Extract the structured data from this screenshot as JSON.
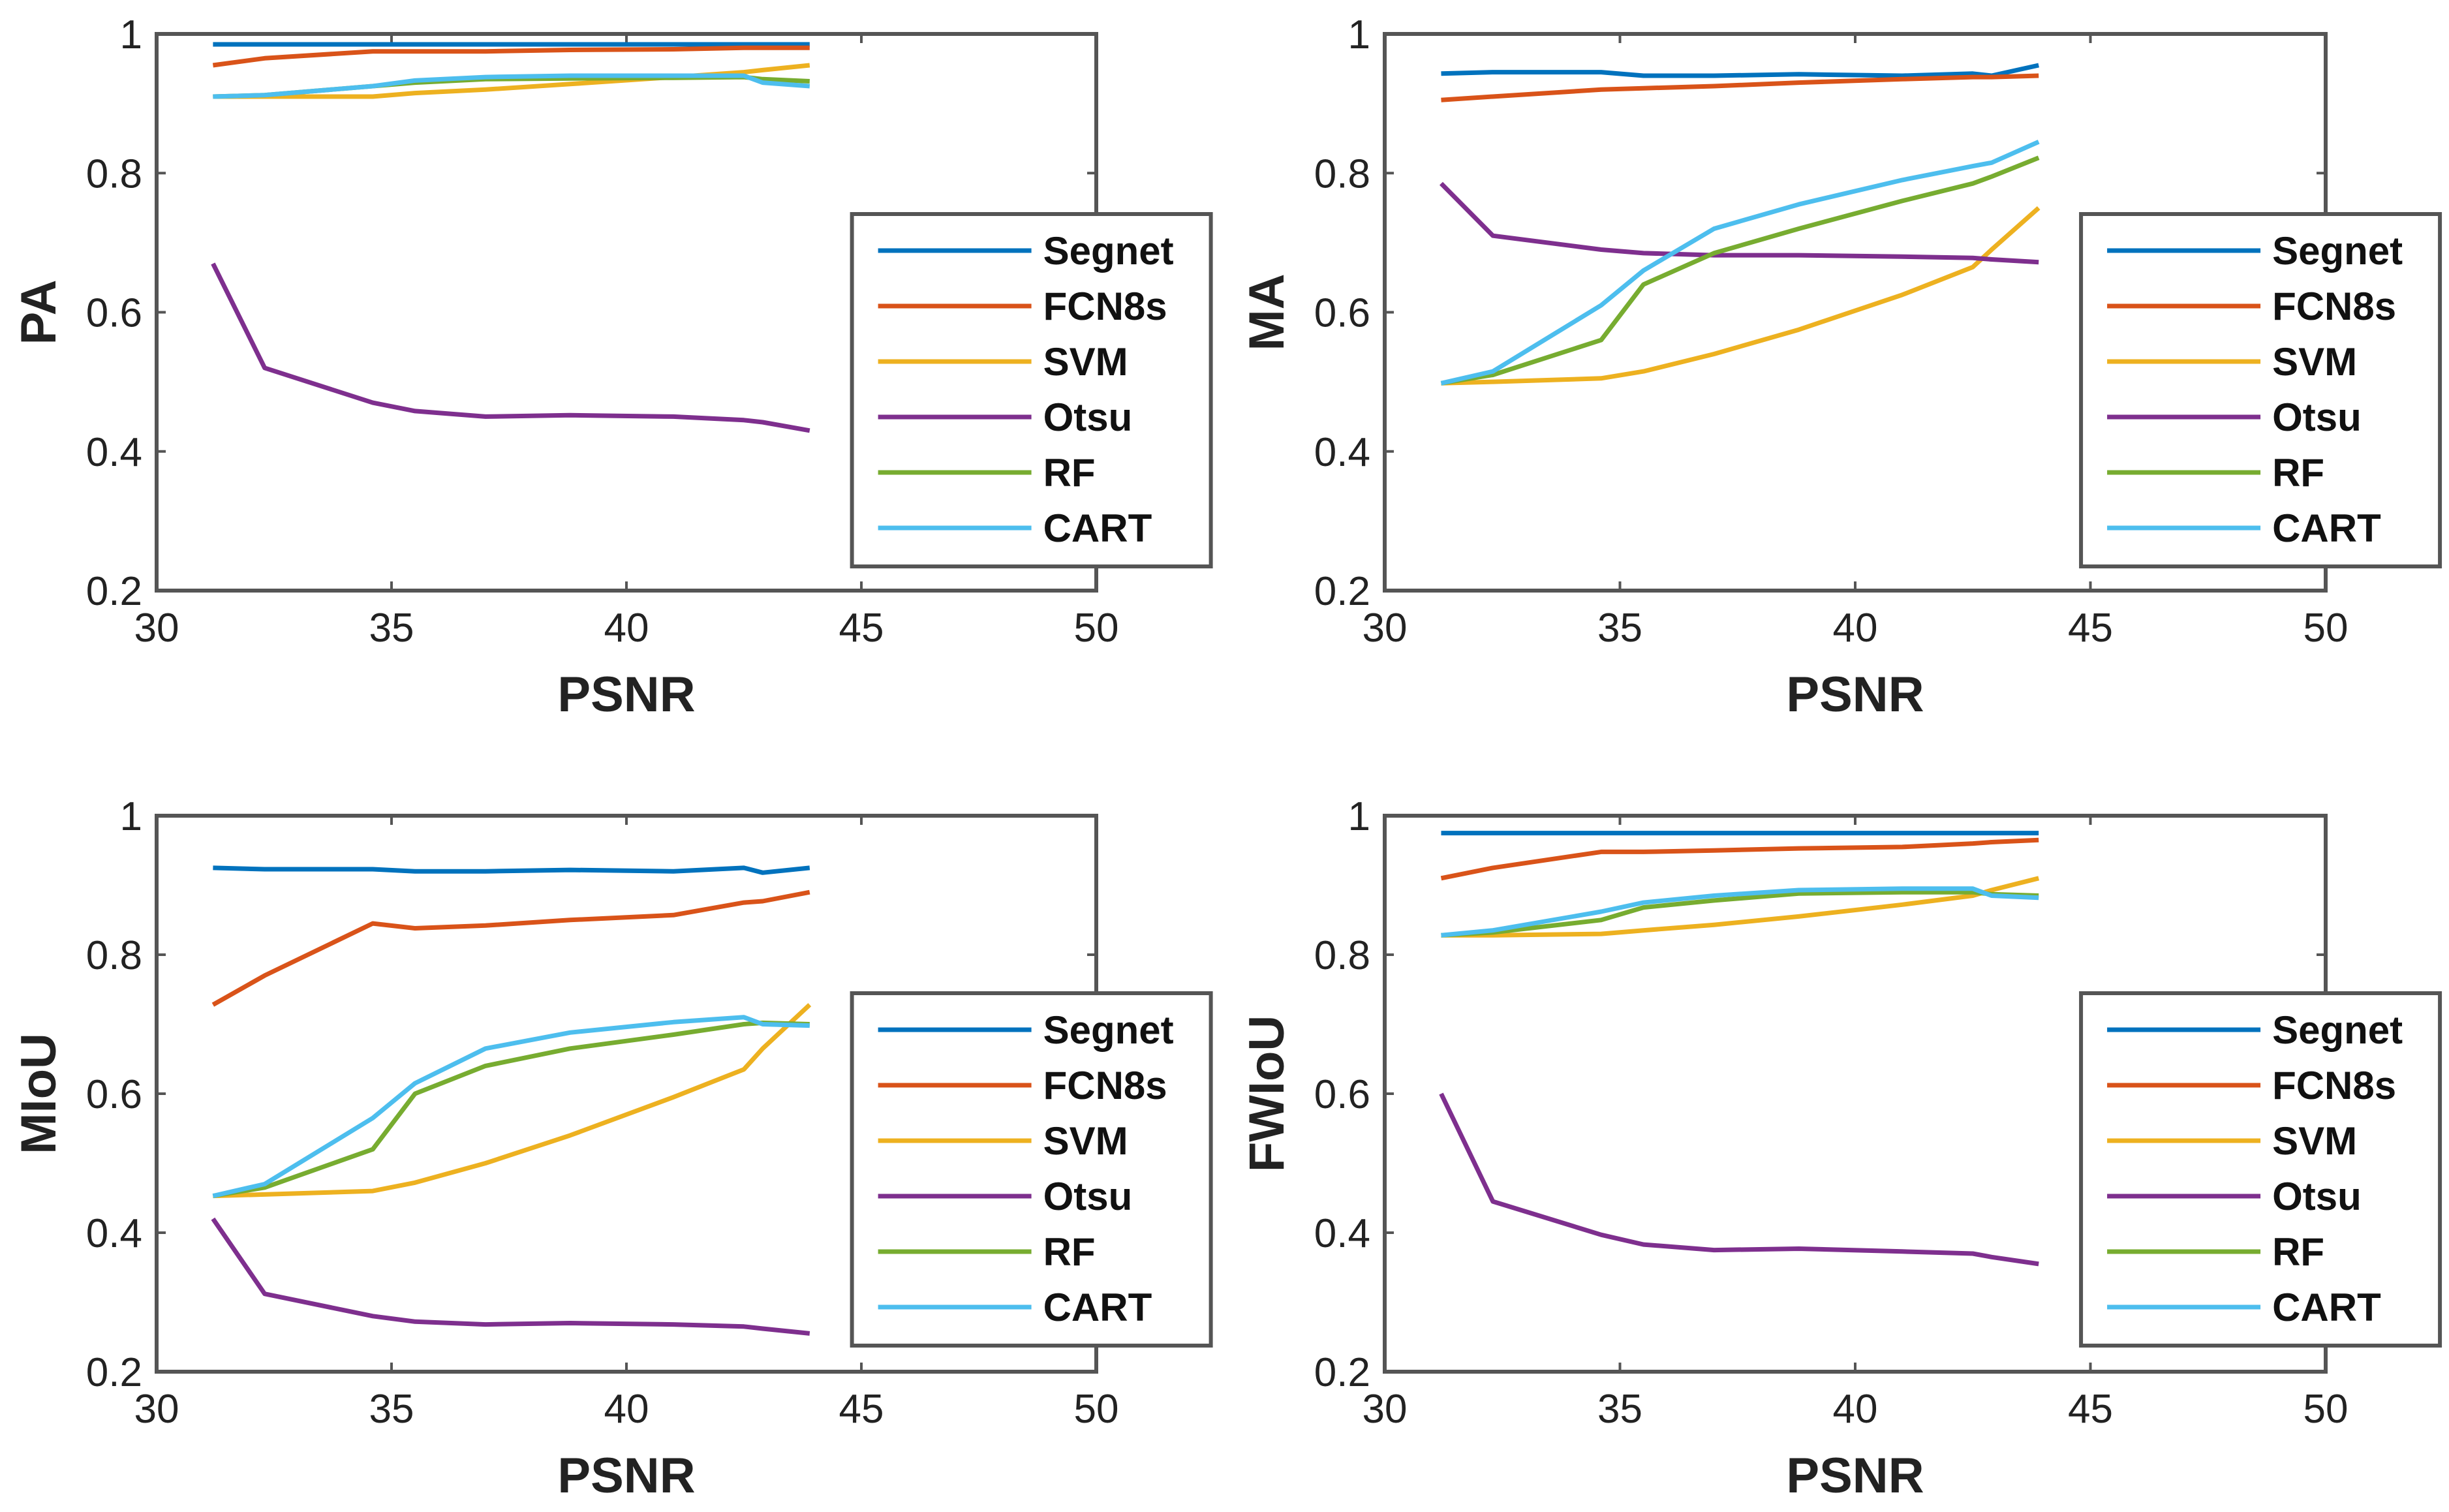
{
  "figure": {
    "colors": {
      "Segnet": "#0072BD",
      "FCN8s": "#D95319",
      "SVM": "#EDB120",
      "Otsu": "#7E2F8E",
      "RF": "#77AC30",
      "CART": "#4DBEEE",
      "axis": "#555555"
    }
  },
  "chart_data": [
    {
      "type": "line",
      "title": "",
      "xlabel": "PSNR",
      "ylabel": "PA",
      "xlim": [
        30,
        50
      ],
      "ylim": [
        0.2,
        1
      ],
      "xticks": [
        "30",
        "35",
        "40",
        "45",
        "50"
      ],
      "yticks": [
        "0.2",
        "0.4",
        "0.6",
        "0.8",
        "1"
      ],
      "legend_position": "middle-right",
      "x": [
        31.2,
        32.3,
        34.6,
        35.5,
        37,
        38.8,
        41,
        42.5,
        42.9,
        43.9
      ],
      "series": [
        {
          "name": "Segnet",
          "values": [
            0.985,
            0.985,
            0.985,
            0.985,
            0.985,
            0.985,
            0.985,
            0.985,
            0.985,
            0.985
          ]
        },
        {
          "name": "FCN8s",
          "values": [
            0.955,
            0.965,
            0.975,
            0.975,
            0.975,
            0.977,
            0.978,
            0.98,
            0.98,
            0.98
          ]
        },
        {
          "name": "SVM",
          "values": [
            0.91,
            0.91,
            0.91,
            0.915,
            0.92,
            0.928,
            0.938,
            0.945,
            0.948,
            0.955
          ]
        },
        {
          "name": "Otsu",
          "values": [
            0.67,
            0.52,
            0.47,
            0.458,
            0.45,
            0.452,
            0.45,
            0.445,
            0.442,
            0.43
          ]
        },
        {
          "name": "RF",
          "values": [
            0.91,
            0.912,
            0.925,
            0.93,
            0.935,
            0.936,
            0.937,
            0.938,
            0.935,
            0.932
          ]
        },
        {
          "name": "CART",
          "values": [
            0.91,
            0.912,
            0.925,
            0.933,
            0.938,
            0.94,
            0.94,
            0.94,
            0.93,
            0.925
          ]
        }
      ]
    },
    {
      "type": "line",
      "title": "",
      "xlabel": "PSNR",
      "ylabel": "MA",
      "xlim": [
        30,
        50
      ],
      "ylim": [
        0.2,
        1
      ],
      "xticks": [
        "30",
        "35",
        "40",
        "45",
        "50"
      ],
      "yticks": [
        "0.2",
        "0.4",
        "0.6",
        "0.8",
        "1"
      ],
      "legend_position": "middle-right",
      "x": [
        31.2,
        32.3,
        34.6,
        35.5,
        37,
        38.8,
        41,
        42.5,
        42.9,
        43.9
      ],
      "series": [
        {
          "name": "Segnet",
          "values": [
            0.943,
            0.945,
            0.945,
            0.94,
            0.94,
            0.942,
            0.94,
            0.943,
            0.94,
            0.955
          ]
        },
        {
          "name": "FCN8s",
          "values": [
            0.905,
            0.91,
            0.92,
            0.922,
            0.925,
            0.93,
            0.935,
            0.938,
            0.938,
            0.94
          ]
        },
        {
          "name": "SVM",
          "values": [
            0.498,
            0.5,
            0.505,
            0.515,
            0.54,
            0.575,
            0.625,
            0.665,
            0.69,
            0.75
          ]
        },
        {
          "name": "Otsu",
          "values": [
            0.785,
            0.71,
            0.69,
            0.685,
            0.682,
            0.682,
            0.68,
            0.678,
            0.676,
            0.672
          ]
        },
        {
          "name": "RF",
          "values": [
            0.498,
            0.51,
            0.56,
            0.64,
            0.685,
            0.72,
            0.76,
            0.785,
            0.795,
            0.822
          ]
        },
        {
          "name": "CART",
          "values": [
            0.498,
            0.515,
            0.61,
            0.66,
            0.72,
            0.755,
            0.79,
            0.81,
            0.815,
            0.845
          ]
        }
      ]
    },
    {
      "type": "line",
      "title": "",
      "xlabel": "PSNR",
      "ylabel": "MIoU",
      "xlim": [
        30,
        50
      ],
      "ylim": [
        0.2,
        1
      ],
      "xticks": [
        "30",
        "35",
        "40",
        "45",
        "50"
      ],
      "yticks": [
        "0.2",
        "0.4",
        "0.6",
        "0.8",
        "1"
      ],
      "legend_position": "middle-right",
      "x": [
        31.2,
        32.3,
        34.6,
        35.5,
        37,
        38.8,
        41,
        42.5,
        42.9,
        43.9
      ],
      "series": [
        {
          "name": "Segnet",
          "values": [
            0.925,
            0.923,
            0.923,
            0.92,
            0.92,
            0.922,
            0.92,
            0.925,
            0.918,
            0.925
          ]
        },
        {
          "name": "FCN8s",
          "values": [
            0.728,
            0.77,
            0.845,
            0.838,
            0.842,
            0.85,
            0.857,
            0.875,
            0.877,
            0.89
          ]
        },
        {
          "name": "SVM",
          "values": [
            0.453,
            0.455,
            0.46,
            0.472,
            0.5,
            0.54,
            0.595,
            0.635,
            0.665,
            0.728
          ]
        },
        {
          "name": "Otsu",
          "values": [
            0.42,
            0.312,
            0.28,
            0.272,
            0.268,
            0.27,
            0.268,
            0.265,
            0.262,
            0.255
          ]
        },
        {
          "name": "RF",
          "values": [
            0.453,
            0.465,
            0.52,
            0.6,
            0.64,
            0.665,
            0.685,
            0.7,
            0.702,
            0.7
          ]
        },
        {
          "name": "CART",
          "values": [
            0.453,
            0.47,
            0.565,
            0.615,
            0.665,
            0.688,
            0.703,
            0.71,
            0.7,
            0.698
          ]
        }
      ]
    },
    {
      "type": "line",
      "title": "",
      "xlabel": "PSNR",
      "ylabel": "FWIoU",
      "xlim": [
        30,
        50
      ],
      "ylim": [
        0.2,
        1
      ],
      "xticks": [
        "30",
        "35",
        "40",
        "45",
        "50"
      ],
      "yticks": [
        "0.2",
        "0.4",
        "0.6",
        "0.8",
        "1"
      ],
      "legend_position": "middle-right",
      "x": [
        31.2,
        32.3,
        34.6,
        35.5,
        37,
        38.8,
        41,
        42.5,
        42.9,
        43.9
      ],
      "series": [
        {
          "name": "Segnet",
          "values": [
            0.975,
            0.975,
            0.975,
            0.975,
            0.975,
            0.975,
            0.975,
            0.975,
            0.975,
            0.975
          ]
        },
        {
          "name": "FCN8s",
          "values": [
            0.91,
            0.925,
            0.948,
            0.948,
            0.95,
            0.953,
            0.955,
            0.96,
            0.962,
            0.965
          ]
        },
        {
          "name": "SVM",
          "values": [
            0.828,
            0.828,
            0.83,
            0.835,
            0.843,
            0.855,
            0.872,
            0.885,
            0.893,
            0.91
          ]
        },
        {
          "name": "Otsu",
          "values": [
            0.6,
            0.445,
            0.397,
            0.383,
            0.375,
            0.377,
            0.373,
            0.37,
            0.365,
            0.355
          ]
        },
        {
          "name": "RF",
          "values": [
            0.828,
            0.832,
            0.85,
            0.868,
            0.878,
            0.888,
            0.89,
            0.89,
            0.887,
            0.885
          ]
        },
        {
          "name": "CART",
          "values": [
            0.828,
            0.835,
            0.862,
            0.875,
            0.885,
            0.893,
            0.895,
            0.895,
            0.885,
            0.882
          ]
        }
      ]
    }
  ]
}
